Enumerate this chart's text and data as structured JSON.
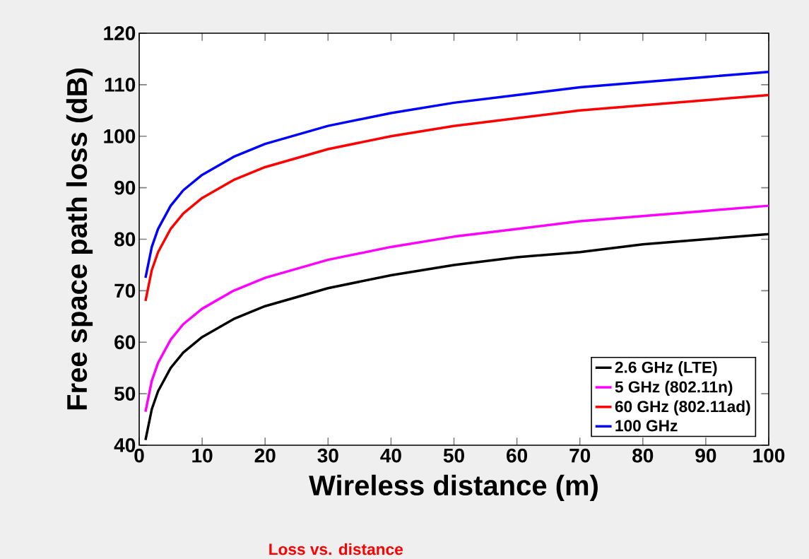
{
  "chart_data": {
    "type": "line",
    "xlabel": "Wireless distance (m)",
    "ylabel": "Free space path loss (dB)",
    "annotations": [
      "Loss vs. distance"
    ],
    "x": [
      1,
      2,
      3,
      5,
      7,
      10,
      15,
      20,
      30,
      40,
      50,
      60,
      70,
      80,
      90,
      100
    ],
    "series": [
      {
        "name": "2.6 GHz (LTE)",
        "color": "#000000",
        "values": [
          41,
          47,
          50.5,
          55,
          58,
          61,
          64.5,
          67,
          70.5,
          73,
          75,
          76.5,
          77.5,
          79,
          80,
          81
        ]
      },
      {
        "name": "5 GHz (802.11n)",
        "color": "#ff00ff",
        "values": [
          46.5,
          52.5,
          56,
          60.5,
          63.5,
          66.5,
          70,
          72.5,
          76,
          78.5,
          80.5,
          82,
          83.5,
          84.5,
          85.5,
          86.5
        ]
      },
      {
        "name": "60 GHz (802.11ad)",
        "color": "#ff0000",
        "values": [
          68,
          74,
          77.5,
          82,
          85,
          88,
          91.5,
          94,
          97.5,
          100,
          102,
          103.5,
          105,
          106,
          107,
          108
        ]
      },
      {
        "name": "100 GHz",
        "color": "#0000ff",
        "values": [
          72.5,
          78.5,
          82,
          86.5,
          89.5,
          92.5,
          96,
          98.5,
          102,
          104.5,
          106.5,
          108,
          109.5,
          110.5,
          111.5,
          112.5
        ]
      }
    ],
    "xlim": [
      0,
      100
    ],
    "xticks": [
      0,
      10,
      20,
      30,
      40,
      50,
      60,
      70,
      80,
      90,
      100
    ],
    "ylim": [
      40,
      120
    ],
    "yticks": [
      40,
      50,
      60,
      70,
      80,
      90,
      100,
      110,
      120
    ],
    "grid": false,
    "legend": "bottom right",
    "marker": "none",
    "line_style": "solid"
  }
}
